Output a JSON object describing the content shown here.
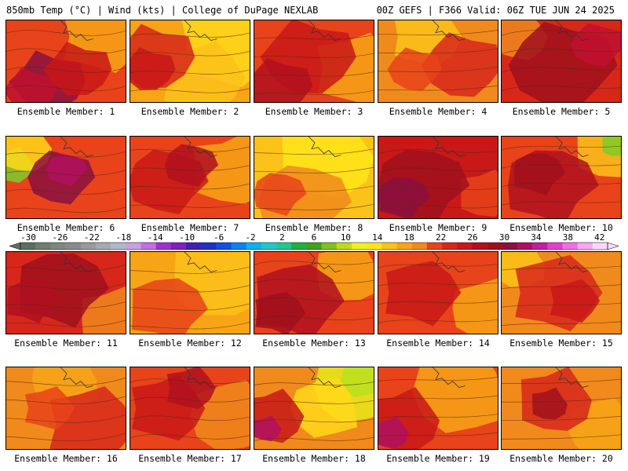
{
  "header": {
    "left": "850mb Temp (°C) | Wind (kts) | College of DuPage NEXLAB",
    "right": "00Z GEFS | F366 Valid: 06Z TUE JUN 24 2025"
  },
  "members": [
    {
      "label": "Ensemble Member: 1",
      "base": "#e8431a",
      "warm": [
        [
          0.35,
          0.75,
          0.28,
          "#8a1040"
        ],
        [
          0.2,
          0.85,
          0.2,
          "#c01030"
        ],
        [
          0.6,
          0.6,
          0.25,
          "#c81818"
        ]
      ],
      "cool": [
        [
          0.8,
          0.2,
          0.3,
          "#f7a416"
        ]
      ]
    },
    {
      "label": "Ensemble Member: 2",
      "base": "#f7a416",
      "warm": [
        [
          0.2,
          0.45,
          0.3,
          "#d7271b"
        ],
        [
          0.15,
          0.6,
          0.2,
          "#c81818"
        ]
      ],
      "cool": [
        [
          0.8,
          0.3,
          0.35,
          "#ffd81a"
        ],
        [
          0.6,
          0.7,
          0.3,
          "#fbc21a"
        ]
      ]
    },
    {
      "label": "Ensemble Member: 3",
      "base": "#e8431a",
      "warm": [
        [
          0.45,
          0.45,
          0.35,
          "#c81818"
        ],
        [
          0.2,
          0.8,
          0.25,
          "#b01020"
        ]
      ],
      "cool": [
        [
          0.85,
          0.6,
          0.3,
          "#f7a416"
        ]
      ]
    },
    {
      "label": "Ensemble Member: 4",
      "base": "#f08a1c",
      "warm": [
        [
          0.7,
          0.55,
          0.3,
          "#d7271b"
        ],
        [
          0.3,
          0.6,
          0.2,
          "#e8431a"
        ]
      ],
      "cool": [
        [
          0.4,
          0.2,
          0.25,
          "#fbc21a"
        ]
      ]
    },
    {
      "label": "Ensemble Member: 5",
      "base": "#d7271b",
      "warm": [
        [
          0.5,
          0.55,
          0.4,
          "#a0101c"
        ],
        [
          0.8,
          0.3,
          0.2,
          "#c01030"
        ]
      ],
      "cool": [
        [
          0.15,
          0.2,
          0.2,
          "#f08a1c"
        ]
      ]
    },
    {
      "label": "Ensemble Member: 6",
      "base": "#e8431a",
      "warm": [
        [
          0.45,
          0.5,
          0.25,
          "#8a1040"
        ],
        [
          0.5,
          0.4,
          0.15,
          "#b01060"
        ]
      ],
      "cool": [
        [
          0.05,
          0.35,
          0.15,
          "#7ccc2a"
        ],
        [
          0.15,
          0.15,
          0.2,
          "#ffd81a"
        ]
      ]
    },
    {
      "label": "Ensemble Member: 7",
      "base": "#e8431a",
      "warm": [
        [
          0.3,
          0.55,
          0.3,
          "#c81818"
        ],
        [
          0.5,
          0.35,
          0.2,
          "#b01020"
        ]
      ],
      "cool": [
        [
          0.85,
          0.4,
          0.3,
          "#f7a416"
        ]
      ]
    },
    {
      "label": "Ensemble Member: 8",
      "base": "#fbc21a",
      "warm": [
        [
          0.4,
          0.8,
          0.35,
          "#f08a1c"
        ],
        [
          0.2,
          0.7,
          0.2,
          "#e8431a"
        ]
      ],
      "cool": [
        [
          0.6,
          0.25,
          0.35,
          "#ffe51a"
        ]
      ]
    },
    {
      "label": "Ensemble Member: 9",
      "base": "#c81818",
      "warm": [
        [
          0.35,
          0.6,
          0.35,
          "#a0101c"
        ],
        [
          0.2,
          0.75,
          0.2,
          "#8a1040"
        ]
      ],
      "cool": [
        [
          0.9,
          0.7,
          0.2,
          "#e8431a"
        ]
      ]
    },
    {
      "label": "Ensemble Member: 10",
      "base": "#e8431a",
      "warm": [
        [
          0.4,
          0.6,
          0.35,
          "#b01020"
        ],
        [
          0.3,
          0.45,
          0.2,
          "#a0101c"
        ]
      ],
      "cool": [
        [
          0.9,
          0.15,
          0.25,
          "#fbc21a"
        ],
        [
          0.95,
          0.1,
          0.1,
          "#7ccc2a"
        ]
      ]
    },
    {
      "label": "Ensemble Member: 11",
      "base": "#d7271b",
      "warm": [
        [
          0.45,
          0.45,
          0.35,
          "#a0101c"
        ],
        [
          0.2,
          0.6,
          0.2,
          "#b01020"
        ]
      ],
      "cool": [
        [
          0.9,
          0.8,
          0.25,
          "#f08a1c"
        ]
      ]
    },
    {
      "label": "Ensemble Member: 12",
      "base": "#f7a416",
      "warm": [
        [
          0.3,
          0.7,
          0.3,
          "#e8431a"
        ]
      ],
      "cool": [
        [
          0.75,
          0.3,
          0.35,
          "#fbc21a"
        ]
      ]
    },
    {
      "label": "Ensemble Member: 13",
      "base": "#e8431a",
      "warm": [
        [
          0.35,
          0.6,
          0.35,
          "#b01020"
        ],
        [
          0.2,
          0.75,
          0.2,
          "#a0101c"
        ]
      ],
      "cool": [
        [
          0.8,
          0.25,
          0.25,
          "#f7a416"
        ]
      ]
    },
    {
      "label": "Ensemble Member: 14",
      "base": "#e8431a",
      "warm": [
        [
          0.35,
          0.5,
          0.3,
          "#c81818"
        ]
      ],
      "cool": [
        [
          0.9,
          0.7,
          0.25,
          "#f7a416"
        ]
      ]
    },
    {
      "label": "Ensemble Member: 15",
      "base": "#f08a1c",
      "warm": [
        [
          0.45,
          0.5,
          0.35,
          "#d7271b"
        ],
        [
          0.6,
          0.6,
          0.2,
          "#c81818"
        ]
      ],
      "cool": [
        [
          0.15,
          0.15,
          0.2,
          "#fbc21a"
        ]
      ]
    },
    {
      "label": "Ensemble Member: 16",
      "base": "#f08a1c",
      "warm": [
        [
          0.7,
          0.7,
          0.35,
          "#d7271b"
        ],
        [
          0.35,
          0.5,
          0.2,
          "#e8431a"
        ]
      ],
      "cool": [
        [
          0.5,
          0.15,
          0.25,
          "#f7a416"
        ]
      ]
    },
    {
      "label": "Ensemble Member: 17",
      "base": "#e8431a",
      "warm": [
        [
          0.3,
          0.5,
          0.3,
          "#c81818"
        ],
        [
          0.5,
          0.25,
          0.2,
          "#b01020"
        ]
      ],
      "cool": [
        [
          0.85,
          0.6,
          0.3,
          "#f08a1c"
        ]
      ]
    },
    {
      "label": "Ensemble Member: 18",
      "base": "#f08a1c",
      "warm": [
        [
          0.15,
          0.6,
          0.25,
          "#c81818"
        ],
        [
          0.1,
          0.75,
          0.12,
          "#b01060"
        ]
      ],
      "cool": [
        [
          0.85,
          0.25,
          0.3,
          "#e6e81a"
        ],
        [
          0.9,
          0.15,
          0.15,
          "#b8e020"
        ],
        [
          0.6,
          0.5,
          0.25,
          "#ffd81a"
        ]
      ]
    },
    {
      "label": "Ensemble Member: 19",
      "base": "#e8431a",
      "warm": [
        [
          0.2,
          0.65,
          0.3,
          "#c81818"
        ],
        [
          0.1,
          0.8,
          0.15,
          "#b01060"
        ]
      ],
      "cool": [
        [
          0.7,
          0.3,
          0.35,
          "#f7a416"
        ]
      ]
    },
    {
      "label": "Ensemble Member: 20",
      "base": "#f08a1c",
      "warm": [
        [
          0.45,
          0.4,
          0.3,
          "#d7271b"
        ],
        [
          0.4,
          0.45,
          0.15,
          "#a0101c"
        ]
      ],
      "cool": [
        [
          0.85,
          0.75,
          0.25,
          "#f7a416"
        ]
      ]
    }
  ],
  "colorbar": {
    "labels": [
      "-30",
      "-26",
      "-22",
      "-18",
      "-14",
      "-10",
      "-6",
      "-2",
      "2",
      "6",
      "10",
      "14",
      "18",
      "22",
      "26",
      "30",
      "34",
      "38",
      "42"
    ],
    "colors": [
      "#5e6e5e",
      "#707c70",
      "#7e887e",
      "#8a8a8a",
      "#9a9a9a",
      "#a8a8b0",
      "#b0b8c8",
      "#c8a0e0",
      "#c070e0",
      "#a030d0",
      "#8020c0",
      "#4020b0",
      "#2030c0",
      "#1050e0",
      "#1080f0",
      "#10b0f0",
      "#20c8c8",
      "#20c890",
      "#20b040",
      "#40a020",
      "#80c020",
      "#c0d820",
      "#f0f020",
      "#ffe51a",
      "#fbc21a",
      "#f7a416",
      "#f08a1c",
      "#e8431a",
      "#d7271b",
      "#c81818",
      "#b01020",
      "#a0101c",
      "#8a1040",
      "#b01060",
      "#c020a0",
      "#e040d0",
      "#f070e0",
      "#f8a8f0",
      "#fcd8f8"
    ]
  }
}
